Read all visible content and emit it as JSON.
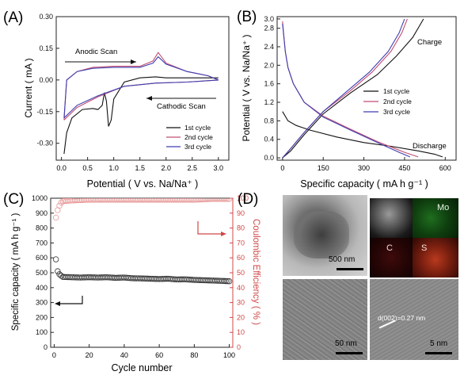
{
  "panel_labels": {
    "a": "(A)",
    "b": "(B)",
    "c": "(C)",
    "d": "(D)"
  },
  "colors": {
    "cycle1": "#111111",
    "cycle2": "#c24e72",
    "cycle3": "#3f3fb0",
    "ce": "#d04848",
    "ce_marker": "#e89a9a",
    "capacity_marker": "#333333"
  },
  "panel_a": {
    "ylabel": "Current ( mA )",
    "xlabel": "Potential ( V vs. Na/Na⁺ )",
    "anodic_label": "Anodic Scan",
    "cathodic_label": "Cathodic Scan",
    "legend": [
      "1st cycle",
      "2nd cycle",
      "3rd cycle"
    ],
    "xticks": [
      "0.0",
      "0.5",
      "1.0",
      "1.5",
      "2.0",
      "2.5",
      "3.0"
    ],
    "yticks": [
      "0.30",
      "0.15",
      "0.00",
      "-0.15",
      "-0.30"
    ]
  },
  "panel_b": {
    "ylabel": "Potential ( V vs. Na/Na⁺ )",
    "xlabel": "Specific capacity ( mA h g⁻¹ )",
    "charge_label": "Charge",
    "discharge_label": "Discharge",
    "legend": [
      "1st cycle",
      "2nd cycle",
      "3rd cycle"
    ],
    "xticks": [
      "0",
      "150",
      "300",
      "450",
      "600"
    ],
    "yticks": [
      "0.0",
      "0.4",
      "0.8",
      "1.2",
      "1.6",
      "2.0",
      "2.4",
      "2.8",
      "3.0"
    ]
  },
  "panel_c": {
    "ylabel_left": "Specific capacity ( mA h g⁻¹ )",
    "ylabel_right": "Coulombic Efficiency ( % )",
    "xlabel": "Cycle number",
    "xticks": [
      "0",
      "20",
      "40",
      "60",
      "80",
      "100"
    ],
    "yticks_left": [
      "0",
      "100",
      "200",
      "300",
      "400",
      "500",
      "600",
      "700",
      "800",
      "900",
      "1000"
    ],
    "yticks_right": [
      "0",
      "10",
      "20",
      "30",
      "40",
      "50",
      "60",
      "70",
      "80",
      "90",
      "100"
    ]
  },
  "panel_d": {
    "scale_bar_1": "500 nm",
    "scale_bar_2": "50 nm",
    "scale_bar_3": "5 nm",
    "map_mo": "Mo",
    "map_c": "C",
    "map_s": "S",
    "lattice_label": "d(002)=0.27 nm"
  },
  "chart_data": [
    {
      "type": "line",
      "panel": "A",
      "xlabel": "Potential ( V vs. Na/Na⁺ )",
      "ylabel": "Current ( mA )",
      "xlim": [
        -0.1,
        3.2
      ],
      "ylim": [
        -0.38,
        0.3
      ],
      "series": [
        {
          "name": "1st cycle",
          "points": [
            [
              0.05,
              -0.35
            ],
            [
              0.1,
              -0.25
            ],
            [
              0.2,
              -0.18
            ],
            [
              0.4,
              -0.14
            ],
            [
              0.6,
              -0.135
            ],
            [
              0.7,
              -0.14
            ],
            [
              0.78,
              -0.12
            ],
            [
              0.82,
              -0.06
            ],
            [
              0.86,
              -0.1
            ],
            [
              0.9,
              -0.22
            ],
            [
              0.95,
              -0.19
            ],
            [
              1.0,
              -0.09
            ],
            [
              1.2,
              -0.01
            ],
            [
              1.5,
              0.01
            ],
            [
              1.8,
              0.015
            ],
            [
              2.0,
              0.01
            ],
            [
              2.3,
              0.01
            ],
            [
              2.6,
              0.01
            ],
            [
              2.9,
              0.01
            ],
            [
              3.0,
              0.01
            ]
          ]
        },
        {
          "name": "2nd cycle",
          "points": [
            [
              0.05,
              -0.19
            ],
            [
              0.3,
              -0.13
            ],
            [
              0.7,
              -0.08
            ],
            [
              1.2,
              -0.03
            ],
            [
              1.8,
              -0.015
            ],
            [
              2.4,
              -0.01
            ],
            [
              3.0,
              0.0
            ],
            [
              2.8,
              0.02
            ],
            [
              2.4,
              0.04
            ],
            [
              2.0,
              0.08
            ],
            [
              1.85,
              0.13
            ],
            [
              1.75,
              0.09
            ],
            [
              1.5,
              0.065
            ],
            [
              1.0,
              0.065
            ],
            [
              0.6,
              0.06
            ],
            [
              0.3,
              0.04
            ],
            [
              0.1,
              0.0
            ],
            [
              0.05,
              -0.19
            ]
          ]
        },
        {
          "name": "3rd cycle",
          "points": [
            [
              0.05,
              -0.18
            ],
            [
              0.3,
              -0.12
            ],
            [
              0.7,
              -0.075
            ],
            [
              1.2,
              -0.03
            ],
            [
              1.8,
              -0.015
            ],
            [
              2.4,
              -0.01
            ],
            [
              3.0,
              0.0
            ],
            [
              2.8,
              0.02
            ],
            [
              2.4,
              0.04
            ],
            [
              2.0,
              0.075
            ],
            [
              1.85,
              0.11
            ],
            [
              1.75,
              0.08
            ],
            [
              1.5,
              0.06
            ],
            [
              1.0,
              0.06
            ],
            [
              0.6,
              0.055
            ],
            [
              0.3,
              0.04
            ],
            [
              0.1,
              0.0
            ],
            [
              0.05,
              -0.18
            ]
          ]
        }
      ]
    },
    {
      "type": "line",
      "panel": "B",
      "xlabel": "Specific capacity ( mA h g⁻¹ )",
      "ylabel": "Potential ( V vs. Na/Na⁺ )",
      "xlim": [
        -20,
        640
      ],
      "ylim": [
        -0.05,
        3.05
      ],
      "series": [
        {
          "name": "1st cycle",
          "discharge": [
            [
              0,
              1.0
            ],
            [
              20,
              0.8
            ],
            [
              50,
              0.7
            ],
            [
              100,
              0.6
            ],
            [
              200,
              0.45
            ],
            [
              300,
              0.33
            ],
            [
              400,
              0.25
            ],
            [
              500,
              0.15
            ],
            [
              560,
              0.08
            ],
            [
              590,
              0.02
            ]
          ],
          "charge": [
            [
              0,
              0.0
            ],
            [
              30,
              0.15
            ],
            [
              80,
              0.5
            ],
            [
              150,
              0.95
            ],
            [
              250,
              1.4
            ],
            [
              350,
              1.8
            ],
            [
              420,
              2.2
            ],
            [
              480,
              2.6
            ],
            [
              520,
              3.0
            ]
          ]
        },
        {
          "name": "2nd cycle",
          "discharge": [
            [
              0,
              2.95
            ],
            [
              10,
              2.3
            ],
            [
              20,
              1.95
            ],
            [
              40,
              1.6
            ],
            [
              80,
              1.2
            ],
            [
              150,
              0.9
            ],
            [
              250,
              0.62
            ],
            [
              350,
              0.35
            ],
            [
              450,
              0.12
            ],
            [
              500,
              0.02
            ]
          ],
          "charge": [
            [
              0,
              0.0
            ],
            [
              30,
              0.2
            ],
            [
              80,
              0.55
            ],
            [
              150,
              1.0
            ],
            [
              250,
              1.45
            ],
            [
              330,
              1.85
            ],
            [
              400,
              2.3
            ],
            [
              440,
              2.7
            ],
            [
              460,
              3.0
            ]
          ]
        },
        {
          "name": "3rd cycle",
          "discharge": [
            [
              0,
              2.9
            ],
            [
              10,
              2.3
            ],
            [
              20,
              1.95
            ],
            [
              40,
              1.6
            ],
            [
              80,
              1.2
            ],
            [
              150,
              0.88
            ],
            [
              250,
              0.6
            ],
            [
              350,
              0.33
            ],
            [
              430,
              0.12
            ],
            [
              470,
              0.02
            ]
          ],
          "charge": [
            [
              0,
              0.0
            ],
            [
              30,
              0.2
            ],
            [
              80,
              0.55
            ],
            [
              150,
              1.0
            ],
            [
              240,
              1.45
            ],
            [
              320,
              1.85
            ],
            [
              390,
              2.3
            ],
            [
              430,
              2.7
            ],
            [
              450,
              3.0
            ]
          ]
        }
      ]
    },
    {
      "type": "scatter",
      "panel": "C",
      "xlabel": "Cycle number",
      "ylabel": "Specific capacity ( mA h g⁻¹ )",
      "y2label": "Coulombic Efficiency ( % )",
      "xlim": [
        -2,
        102
      ],
      "ylim": [
        0,
        1000
      ],
      "y2lim": [
        0,
        100
      ],
      "series": [
        {
          "name": "Specific capacity",
          "axis": "left",
          "points": [
            [
              1,
              590
            ],
            [
              2,
              510
            ],
            [
              3,
              490
            ],
            [
              4,
              480
            ],
            [
              5,
              472
            ],
            [
              10,
              470
            ],
            [
              15,
              468
            ],
            [
              20,
              470
            ],
            [
              25,
              468
            ],
            [
              30,
              470
            ],
            [
              35,
              466
            ],
            [
              40,
              468
            ],
            [
              45,
              463
            ],
            [
              50,
              462
            ],
            [
              55,
              460
            ],
            [
              60,
              458
            ],
            [
              65,
              460
            ],
            [
              70,
              455
            ],
            [
              75,
              456
            ],
            [
              80,
              452
            ],
            [
              85,
              450
            ],
            [
              90,
              448
            ],
            [
              95,
              446
            ],
            [
              100,
              443
            ]
          ]
        },
        {
          "name": "Coulombic Efficiency",
          "axis": "right",
          "points": [
            [
              1,
              87
            ],
            [
              2,
              92
            ],
            [
              3,
              95
            ],
            [
              4,
              97
            ],
            [
              5,
              98
            ],
            [
              10,
              98.5
            ],
            [
              20,
              99
            ],
            [
              30,
              99
            ],
            [
              40,
              99
            ],
            [
              50,
              99
            ],
            [
              60,
              99
            ],
            [
              70,
              99
            ],
            [
              80,
              99
            ],
            [
              90,
              99.5
            ],
            [
              100,
              99.5
            ]
          ]
        }
      ]
    }
  ]
}
